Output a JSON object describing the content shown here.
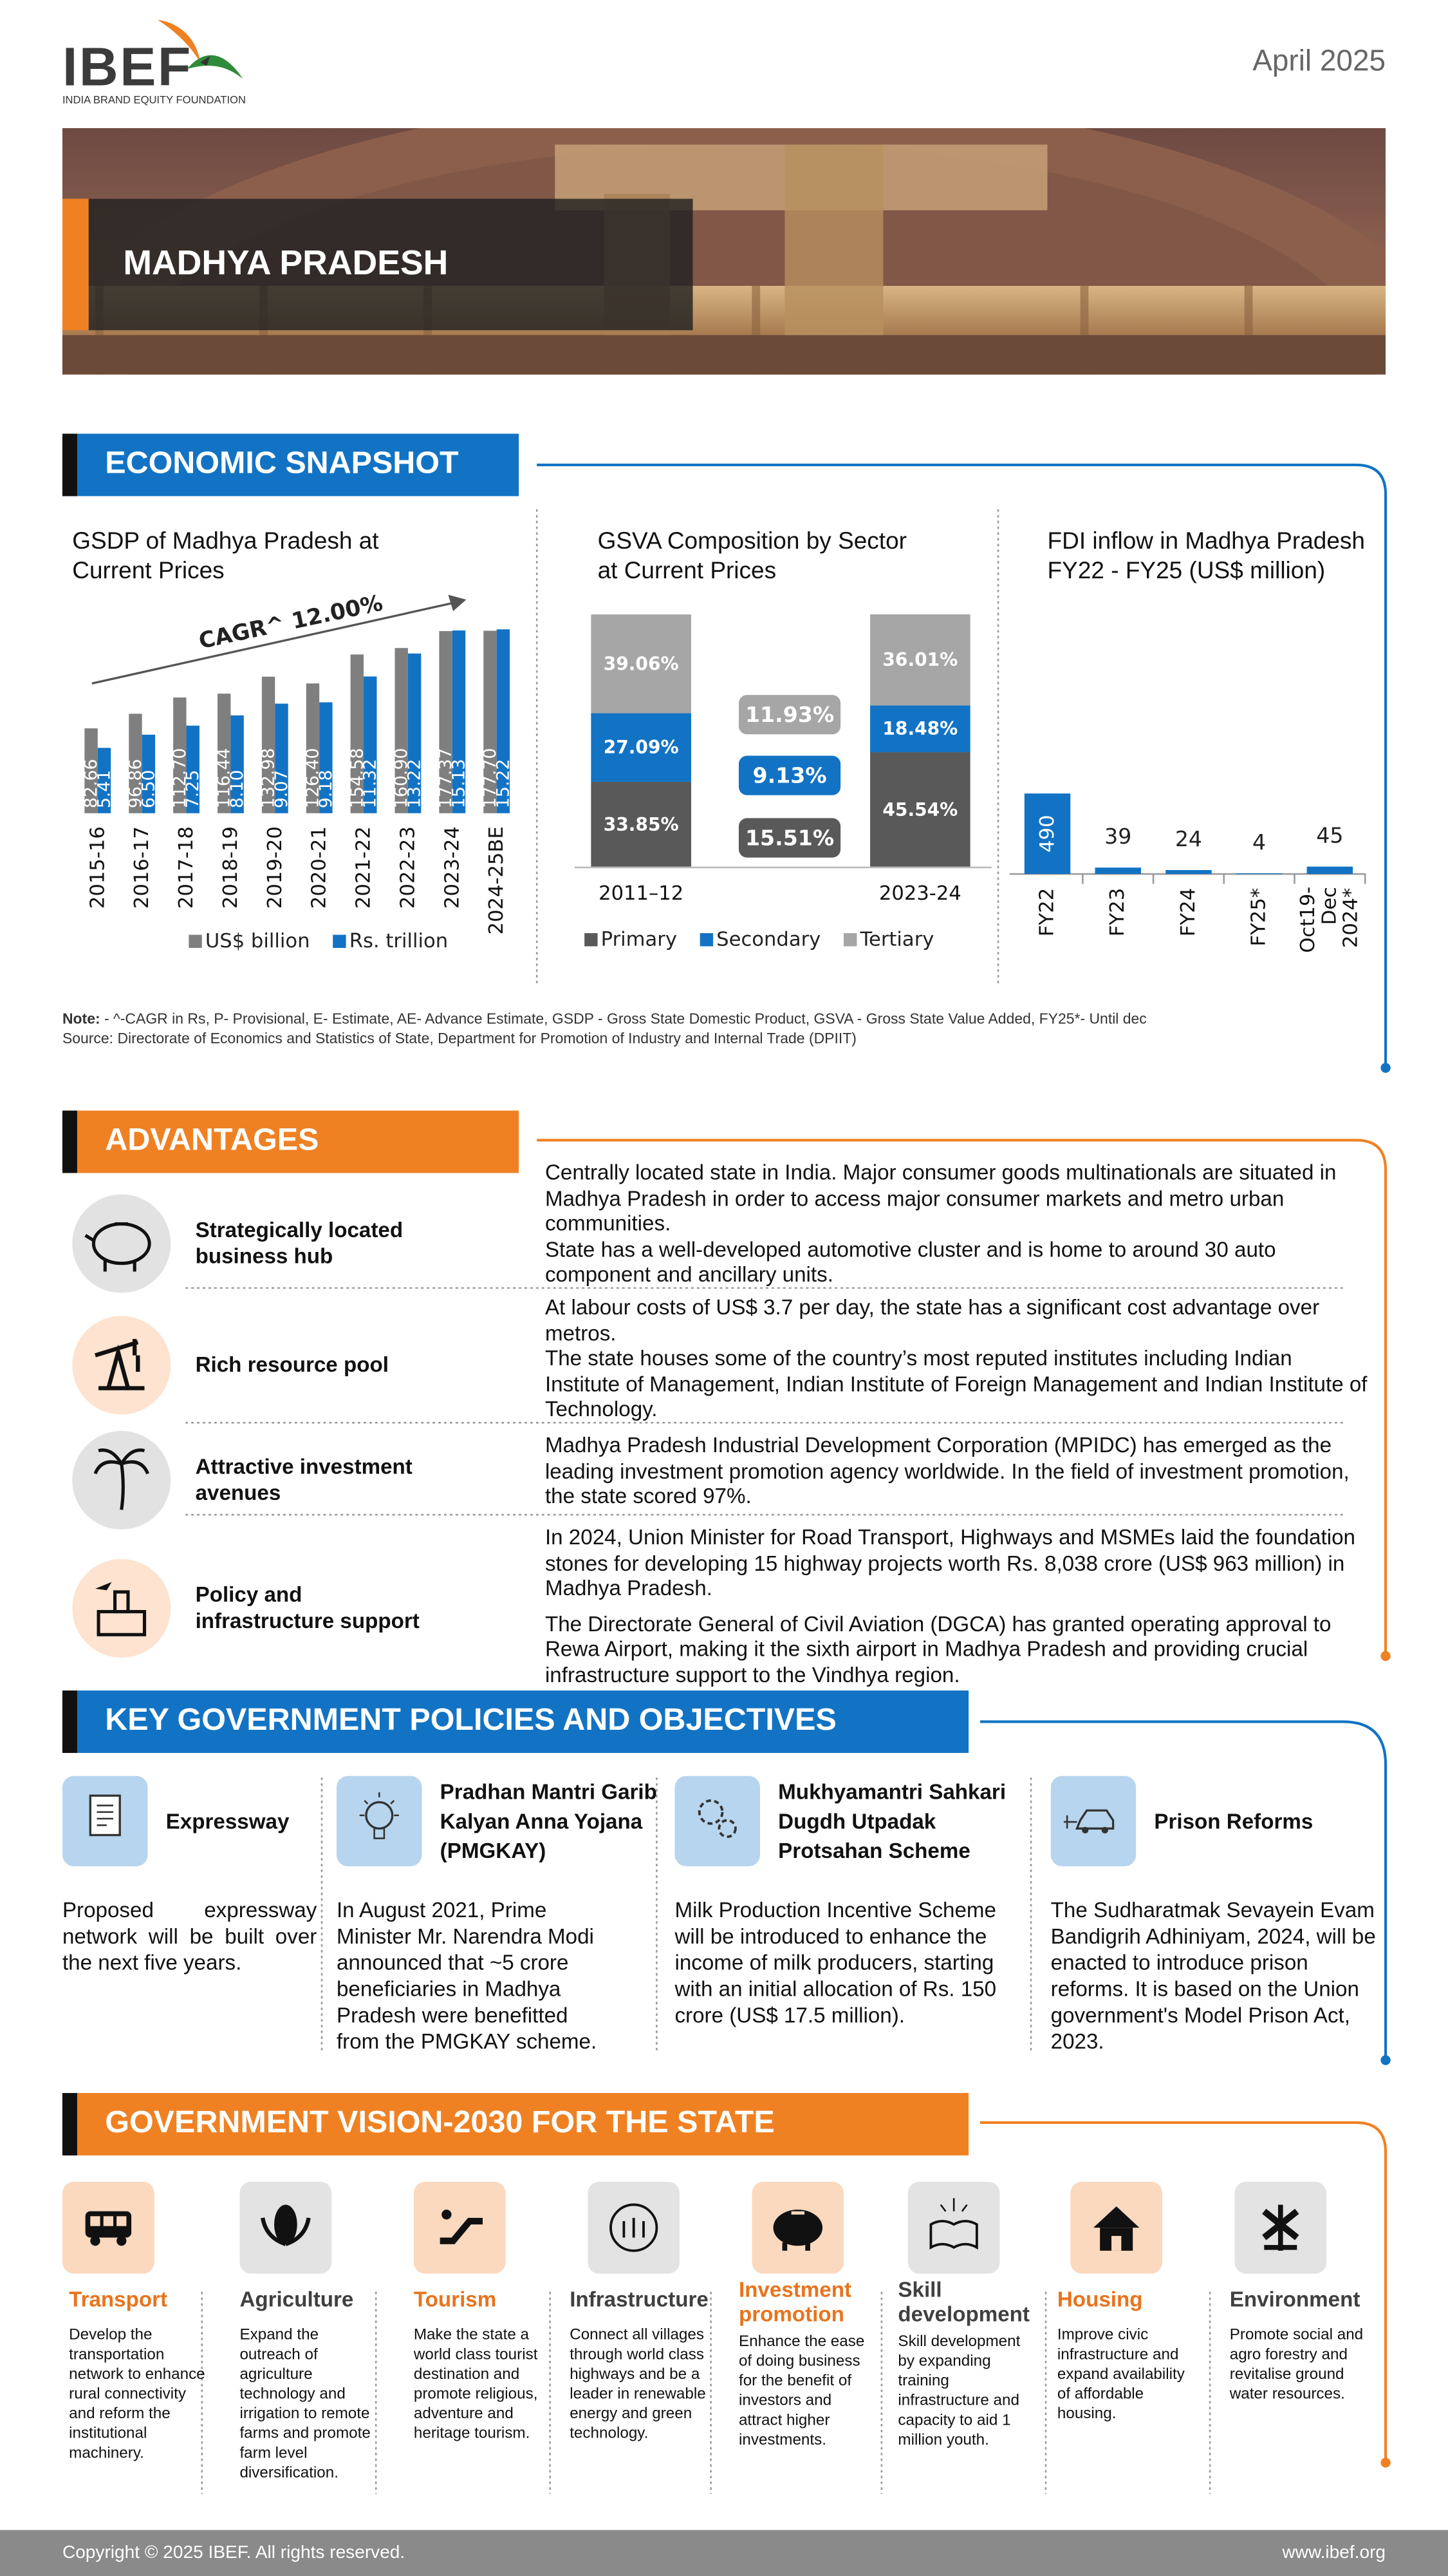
{
  "header": {
    "logo": "IBEF",
    "logo_tagline": "INDIA BRAND EQUITY FOUNDATION",
    "date": "April 2025",
    "state": "MADHYA PRADESH"
  },
  "economic_snapshot": {
    "title": "ECONOMIC SNAPSHOT",
    "note_label": "Note:",
    "note": " - ^-CAGR in Rs, P- Provisional, E- Estimate, AE- Advance Estimate, GSDP - Gross State Domestic Product, GSVA - Gross State Value Added, FY25*- Until dec",
    "source": "Source: Directorate of Economics and Statistics of State, Department for Promotion of Industry and Internal Trade (DPIIT)"
  },
  "chart_data": [
    {
      "type": "bar",
      "title": "GSDP of Madhya Pradesh at Current Prices",
      "annotation": "CAGR^ 12.00%",
      "categories": [
        "2015-16",
        "2016-17",
        "2017-18",
        "2018-19",
        "2019-20",
        "2020-21",
        "2021-22",
        "2022-23",
        "2023-24",
        "2024-25BE"
      ],
      "series": [
        {
          "name": "US$ billion",
          "color": "#7f7f7f",
          "values": [
            82.66,
            96.86,
            112.7,
            116.44,
            132.98,
            126.4,
            154.58,
            160.9,
            177.37,
            177.7
          ],
          "value_labels": [
            "82.66",
            "96.86",
            "112.70",
            "116.44",
            "132.98",
            "126.40",
            "154.58",
            "160.90",
            "177.37",
            "177.70"
          ]
        },
        {
          "name": "Rs. trillion",
          "color": "#1273c4",
          "axis": "y2",
          "values": [
            5.41,
            6.5,
            7.25,
            8.1,
            9.07,
            9.18,
            11.32,
            13.22,
            15.13,
            15.22
          ],
          "value_labels": [
            "5.41",
            "6.50",
            "7.25",
            "8.10",
            "9.07",
            "9.18",
            "11.32",
            "13.22",
            "15.13",
            "15.22"
          ]
        }
      ],
      "ylim": [
        0,
        200
      ],
      "y2lim": [
        0,
        17
      ],
      "legend": "bottom"
    },
    {
      "type": "stacked-bar",
      "title": "GSVA Composition by Sector at Current Prices",
      "categories": [
        "2011–12",
        "2023-24"
      ],
      "series": [
        {
          "name": "Primary",
          "color": "#595959",
          "values": [
            33.85,
            45.54
          ],
          "value_labels": [
            "33.85%",
            "45.54%"
          ],
          "change": 15.51,
          "change_label": "15.51%"
        },
        {
          "name": "Secondary",
          "color": "#1273c4",
          "values": [
            27.09,
            18.48
          ],
          "value_labels": [
            "27.09%",
            "18.48%"
          ],
          "change": 9.13,
          "change_label": "9.13%"
        },
        {
          "name": "Tertiary",
          "color": "#a6a6a6",
          "values": [
            39.06,
            36.01
          ],
          "value_labels": [
            "39.06%",
            "36.01%"
          ],
          "change": 11.93,
          "change_label": "11.93%"
        }
      ],
      "ylim": [
        0,
        100
      ],
      "legend": "bottom"
    },
    {
      "type": "bar",
      "title": "FDI inflow in Madhya Pradesh FY22 - FY25 (US$ million)",
      "categories": [
        "FY22",
        "FY23",
        "FY24",
        "FY25*",
        "Oct19-Dec 2024*"
      ],
      "values": [
        490,
        39,
        24,
        4,
        45
      ],
      "color": "#1273c4",
      "ylim": [
        0,
        1200
      ]
    }
  ],
  "advantages": {
    "title": "ADVANTAGES",
    "items": [
      {
        "label": "Strategically located business hub",
        "paragraphs": [
          "Centrally located state in India. Major consumer goods multinationals are situated in Madhya Pradesh in order to access major consumer markets and metro urban communities.",
          "State has a well-developed automotive cluster and is home to around 30 auto component and ancillary units."
        ]
      },
      {
        "label": "Rich resource pool",
        "paragraphs": [
          "At labour costs of US$ 3.7 per day, the state has a significant cost advantage over metros.",
          "The state houses some of the country’s most reputed institutes including Indian Institute of Management, Indian Institute of Foreign Management and Indian Institute of Technology."
        ]
      },
      {
        "label": "Attractive investment avenues",
        "paragraphs": [
          "Madhya Pradesh Industrial Development Corporation (MPIDC) has emerged as the leading investment promotion agency worldwide. In the field of investment promotion, the state scored 97%."
        ]
      },
      {
        "label": "Policy and infrastructure support",
        "paragraphs": [
          "In 2024,  Union Minister for Road Transport, Highways and MSMEs laid the foundation stones for developing 15 highway projects worth Rs. 8,038 crore (US$ 963 million) in Madhya Pradesh.",
          "The Directorate General of Civil Aviation (DGCA) has granted operating approval to Rewa Airport, making it the sixth airport in Madhya Pradesh and providing crucial infrastructure support to the Vindhya region."
        ]
      }
    ]
  },
  "policies": {
    "title": "KEY GOVERNMENT POLICIES AND OBJECTIVES",
    "items": [
      {
        "title": "Expressway",
        "text": "Proposed expressway network will be built over the next five years."
      },
      {
        "title": "Pradhan Mantri Garib Kalyan Anna Yojana (PMGKAY)",
        "text": "In August 2021, Prime Minister Mr. Narendra Modi announced that ~5 crore beneficiaries in Madhya Pradesh were benefitted from the PMGKAY scheme."
      },
      {
        "title": "Mukhyamantri Sahkari Dugdh Utpadak Protsahan Scheme",
        "text": "Milk Production Incentive Scheme will be introduced to enhance the income of milk producers, starting with an initial allocation of Rs. 150 crore (US$ 17.5 million)."
      },
      {
        "title": "Prison Reforms",
        "text": "The Sudharatmak Sevayein Evam Bandigrih Adhiniyam, 2024, will be enacted to introduce prison reforms.  It is based on the Union government's Model Prison Act, 2023."
      }
    ]
  },
  "vision": {
    "title": "GOVERNMENT VISION-2030 FOR THE STATE",
    "items": [
      {
        "title": "Transport",
        "text": "Develop the transportation network to enhance rural connectivity and reform the institutional machinery."
      },
      {
        "title": "Agriculture",
        "text": "Expand the outreach of agriculture technology and irrigation to remote farms and promote farm level diversification."
      },
      {
        "title": "Tourism",
        "text": "Make the state a world class tourist destination and promote religious, adventure and heritage tourism."
      },
      {
        "title": "Infrastructure",
        "text": "Connect all villages through world class highways and be a leader in renewable energy and green technology."
      },
      {
        "title": "Investment promotion",
        "text": "Enhance the ease of doing business for the benefit of investors and attract higher investments."
      },
      {
        "title": "Skill development",
        "text": "Skill development by expanding training infrastructure and capacity to aid 1 million youth."
      },
      {
        "title": "Housing",
        "text": "Improve civic infrastructure and expand availability of affordable housing."
      },
      {
        "title": "Environment",
        "text": "Promote social and agro forestry and revitalise ground water resources."
      }
    ]
  },
  "footer": {
    "copyright": "Copyright © 2025 IBEF. All rights reserved.",
    "website": "www.ibef.org"
  }
}
